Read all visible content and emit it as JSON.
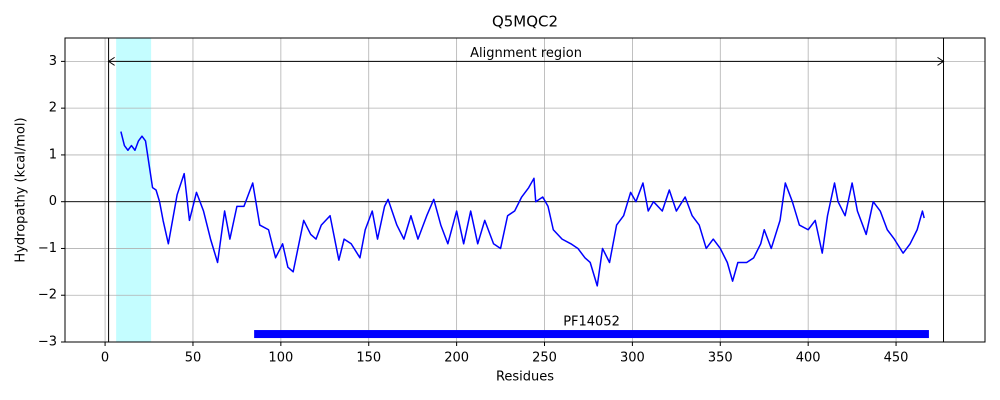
{
  "chart_data": {
    "type": "line",
    "title": "Q5MQC2",
    "x_label": "Residues",
    "y_label": "Hydropathy (kcal/mol)",
    "xlim": [
      -22.8,
      500.6
    ],
    "ylim": [
      -3,
      3.5
    ],
    "xticks": [
      0,
      50,
      100,
      150,
      200,
      250,
      300,
      350,
      400,
      450
    ],
    "yticks": [
      {
        "value": -3,
        "label": "−3"
      },
      {
        "value": -2,
        "label": "−2"
      },
      {
        "value": -1,
        "label": "−1"
      },
      0,
      1,
      2,
      3
    ],
    "grid": true,
    "zero_line": 0,
    "span": {
      "x": [
        6.3,
        26.2
      ],
      "color": "#c4fdff"
    },
    "vlines": [
      2,
      477
    ],
    "annotation": {
      "text": "Alignment region",
      "x": [
        2,
        477
      ],
      "y": 3
    },
    "domain": {
      "label": "PF14052",
      "x": [
        84.8,
        468.7
      ],
      "y": -2.83,
      "color": "#0000ff"
    },
    "series": [
      {
        "color": "#0000ff",
        "x": [
          9,
          11,
          13,
          15,
          17,
          19,
          21,
          23,
          25,
          27,
          29,
          31,
          33,
          36,
          41,
          45,
          48,
          52,
          56,
          60,
          64,
          68,
          71,
          75,
          79,
          84,
          88,
          93,
          97,
          101,
          104,
          107,
          113,
          117,
          120,
          123,
          128,
          133,
          136,
          140,
          145,
          148,
          152,
          155,
          159,
          161,
          166,
          170,
          174,
          178,
          183,
          187,
          191,
          195,
          200,
          204,
          208,
          212,
          216,
          221,
          225,
          229,
          233,
          237,
          241,
          244,
          245,
          249,
          252,
          255,
          260,
          265,
          269,
          273,
          276,
          280,
          283,
          287,
          291,
          295,
          299,
          302,
          306,
          309,
          312,
          317,
          321,
          325,
          330,
          334,
          338,
          342,
          346,
          350,
          354,
          357,
          360,
          365,
          369,
          373,
          375,
          379,
          384,
          387,
          391,
          395,
          400,
          404,
          408,
          411,
          415,
          417,
          421,
          425,
          428,
          433,
          437,
          441,
          445,
          449,
          454,
          458,
          462,
          465,
          466
        ],
        "values": [
          1.5,
          1.2,
          1.1,
          1.2,
          1.1,
          1.3,
          1.4,
          1.3,
          0.8,
          0.3,
          0.25,
          0.0,
          -0.4,
          -0.9,
          0.15,
          0.6,
          -0.4,
          0.2,
          -0.2,
          -0.8,
          -1.3,
          -0.2,
          -0.8,
          -0.1,
          -0.1,
          0.4,
          -0.5,
          -0.6,
          -1.2,
          -0.9,
          -1.4,
          -1.5,
          -0.4,
          -0.7,
          -0.8,
          -0.5,
          -0.3,
          -1.25,
          -0.8,
          -0.9,
          -1.2,
          -0.6,
          -0.2,
          -0.8,
          -0.1,
          0.05,
          -0.5,
          -0.8,
          -0.3,
          -0.8,
          -0.3,
          0.05,
          -0.5,
          -0.9,
          -0.2,
          -0.9,
          -0.2,
          -0.9,
          -0.4,
          -0.9,
          -1.0,
          -0.3,
          -0.2,
          0.1,
          0.3,
          0.5,
          0.0,
          0.1,
          -0.1,
          -0.6,
          -0.8,
          -0.9,
          -1.0,
          -1.2,
          -1.3,
          -1.8,
          -1.0,
          -1.3,
          -0.5,
          -0.3,
          0.2,
          0.0,
          0.4,
          -0.2,
          0.0,
          -0.2,
          0.25,
          -0.2,
          0.1,
          -0.3,
          -0.5,
          -1.0,
          -0.8,
          -1.0,
          -1.3,
          -1.7,
          -1.3,
          -1.3,
          -1.2,
          -0.9,
          -0.6,
          -1.0,
          -0.4,
          0.4,
          0.0,
          -0.5,
          -0.6,
          -0.4,
          -1.1,
          -0.3,
          0.4,
          0.0,
          -0.3,
          0.4,
          -0.2,
          -0.7,
          0.0,
          -0.2,
          -0.6,
          -0.8,
          -1.1,
          -0.9,
          -0.6,
          -0.2,
          -0.35
        ]
      }
    ]
  }
}
